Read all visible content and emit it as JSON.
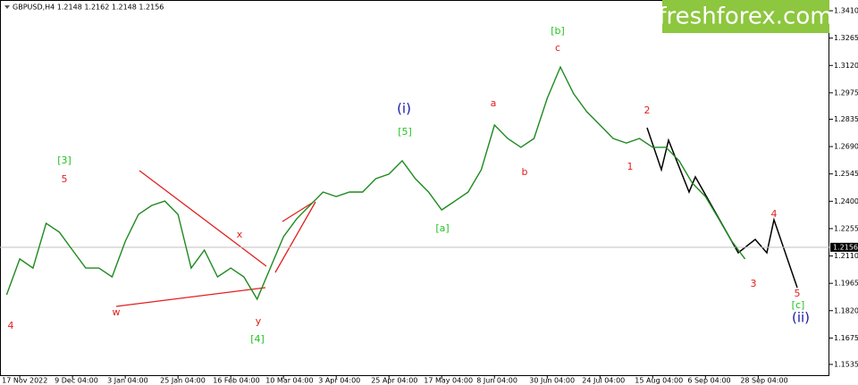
{
  "chart_data": {
    "type": "line",
    "title": "GBPUSD,H4  1.2148 1.2162 1.2148 1.2156",
    "watermark": "freshforex.com",
    "values": [
      1.1904,
      1.2094,
      1.2046,
      1.2283,
      1.2236,
      1.2141,
      1.2046,
      1.2046,
      1.1999,
      1.2188,
      1.233,
      1.2378,
      1.2401,
      1.233,
      1.2046,
      1.2141,
      1.1999,
      1.2046,
      1.1999,
      1.1881,
      1.2046,
      1.2212,
      1.2307,
      1.2378,
      1.2449,
      1.2425,
      1.2449,
      1.2449,
      1.252,
      1.2544,
      1.2615,
      1.252,
      1.2449,
      1.2354,
      1.2401,
      1.2449,
      1.2567,
      1.2804,
      1.2733,
      1.2686,
      1.2733,
      1.2946,
      1.3112,
      1.297,
      1.2875,
      1.2804,
      1.2733,
      1.2709,
      1.2733,
      1.2686,
      1.2686,
      1.2615,
      1.2496,
      1.2425,
      1.2307,
      1.2188,
      1.2094
    ],
    "color": "#1f8a1f",
    "current_price": 1.2156,
    "xlim": [
      -0.5,
      62.4
    ],
    "ylim": [
      1.1478,
      1.3467
    ],
    "xticks": [
      {
        "value": 1,
        "label": "17 Nov 2022"
      },
      {
        "value": 5,
        "label": "9 Dec 04:00"
      },
      {
        "value": 9,
        "label": "3 Jan 04:00"
      },
      {
        "value": 13,
        "label": "25 Jan 04:00"
      },
      {
        "value": 17,
        "label": "16 Feb 04:00"
      },
      {
        "value": 21,
        "label": "10 Mar 04:00"
      },
      {
        "value": 25,
        "label": "3 Apr 04:00"
      },
      {
        "value": 29,
        "label": "25 Apr 04:00"
      },
      {
        "value": 33,
        "label": "17 May 04:00"
      },
      {
        "value": 37,
        "label": "8 Jun 04:00"
      },
      {
        "value": 41,
        "label": "30 Jun 04:00"
      },
      {
        "value": 45,
        "label": "24 Jul 04:00"
      },
      {
        "value": 49,
        "label": "15 Aug 04:00"
      },
      {
        "value": 53,
        "label": "6 Sep 04:00"
      },
      {
        "value": 57,
        "label": "28 Sep 04:00"
      }
    ],
    "yticks": [
      {
        "value": 1.341,
        "label": "1.3410"
      },
      1.3265,
      {
        "value": 1.312,
        "label": "1.3120"
      },
      1.2975,
      1.2835,
      {
        "value": 1.269,
        "label": "1.2690"
      },
      1.2545,
      {
        "value": 1.24,
        "label": "1.2400"
      },
      1.2255,
      {
        "value": 1.211,
        "label": "1.2110"
      },
      1.1965,
      {
        "value": 1.182,
        "label": "1.1820"
      },
      1.1675,
      1.1535
    ],
    "annotations": [
      {
        "text": "4",
        "color": "#e0201e"
      },
      {
        "text": "[3]",
        "color": "#22c322"
      },
      {
        "text": "5",
        "color": "#e0201e"
      },
      {
        "text": "w",
        "color": "#e0201e"
      },
      {
        "text": "x",
        "color": "#e0201e"
      },
      {
        "text": "y",
        "color": "#e0201e"
      },
      {
        "text": "[4]",
        "color": "#22c322"
      },
      {
        "text": "(i)",
        "color": "#1a1aa8"
      },
      {
        "text": "[5]",
        "color": "#22c322"
      },
      {
        "text": "[a]",
        "color": "#22c322"
      },
      {
        "text": "a",
        "color": "#e0201e"
      },
      {
        "text": "b",
        "color": "#e0201e"
      },
      {
        "text": "c",
        "color": "#e0201e"
      },
      {
        "text": "[b]",
        "color": "#22c322"
      },
      {
        "text": "2",
        "color": "#e0201e"
      },
      {
        "text": "1",
        "color": "#e0201e"
      },
      {
        "text": "3",
        "color": "#e0201e"
      },
      {
        "text": "4",
        "color": "#e0201e"
      },
      {
        "text": "5",
        "color": "#e0201e"
      },
      {
        "text": "[c]",
        "color": "#22c322"
      },
      {
        "text": "(ii)",
        "color": "#1a1aa8"
      }
    ]
  }
}
